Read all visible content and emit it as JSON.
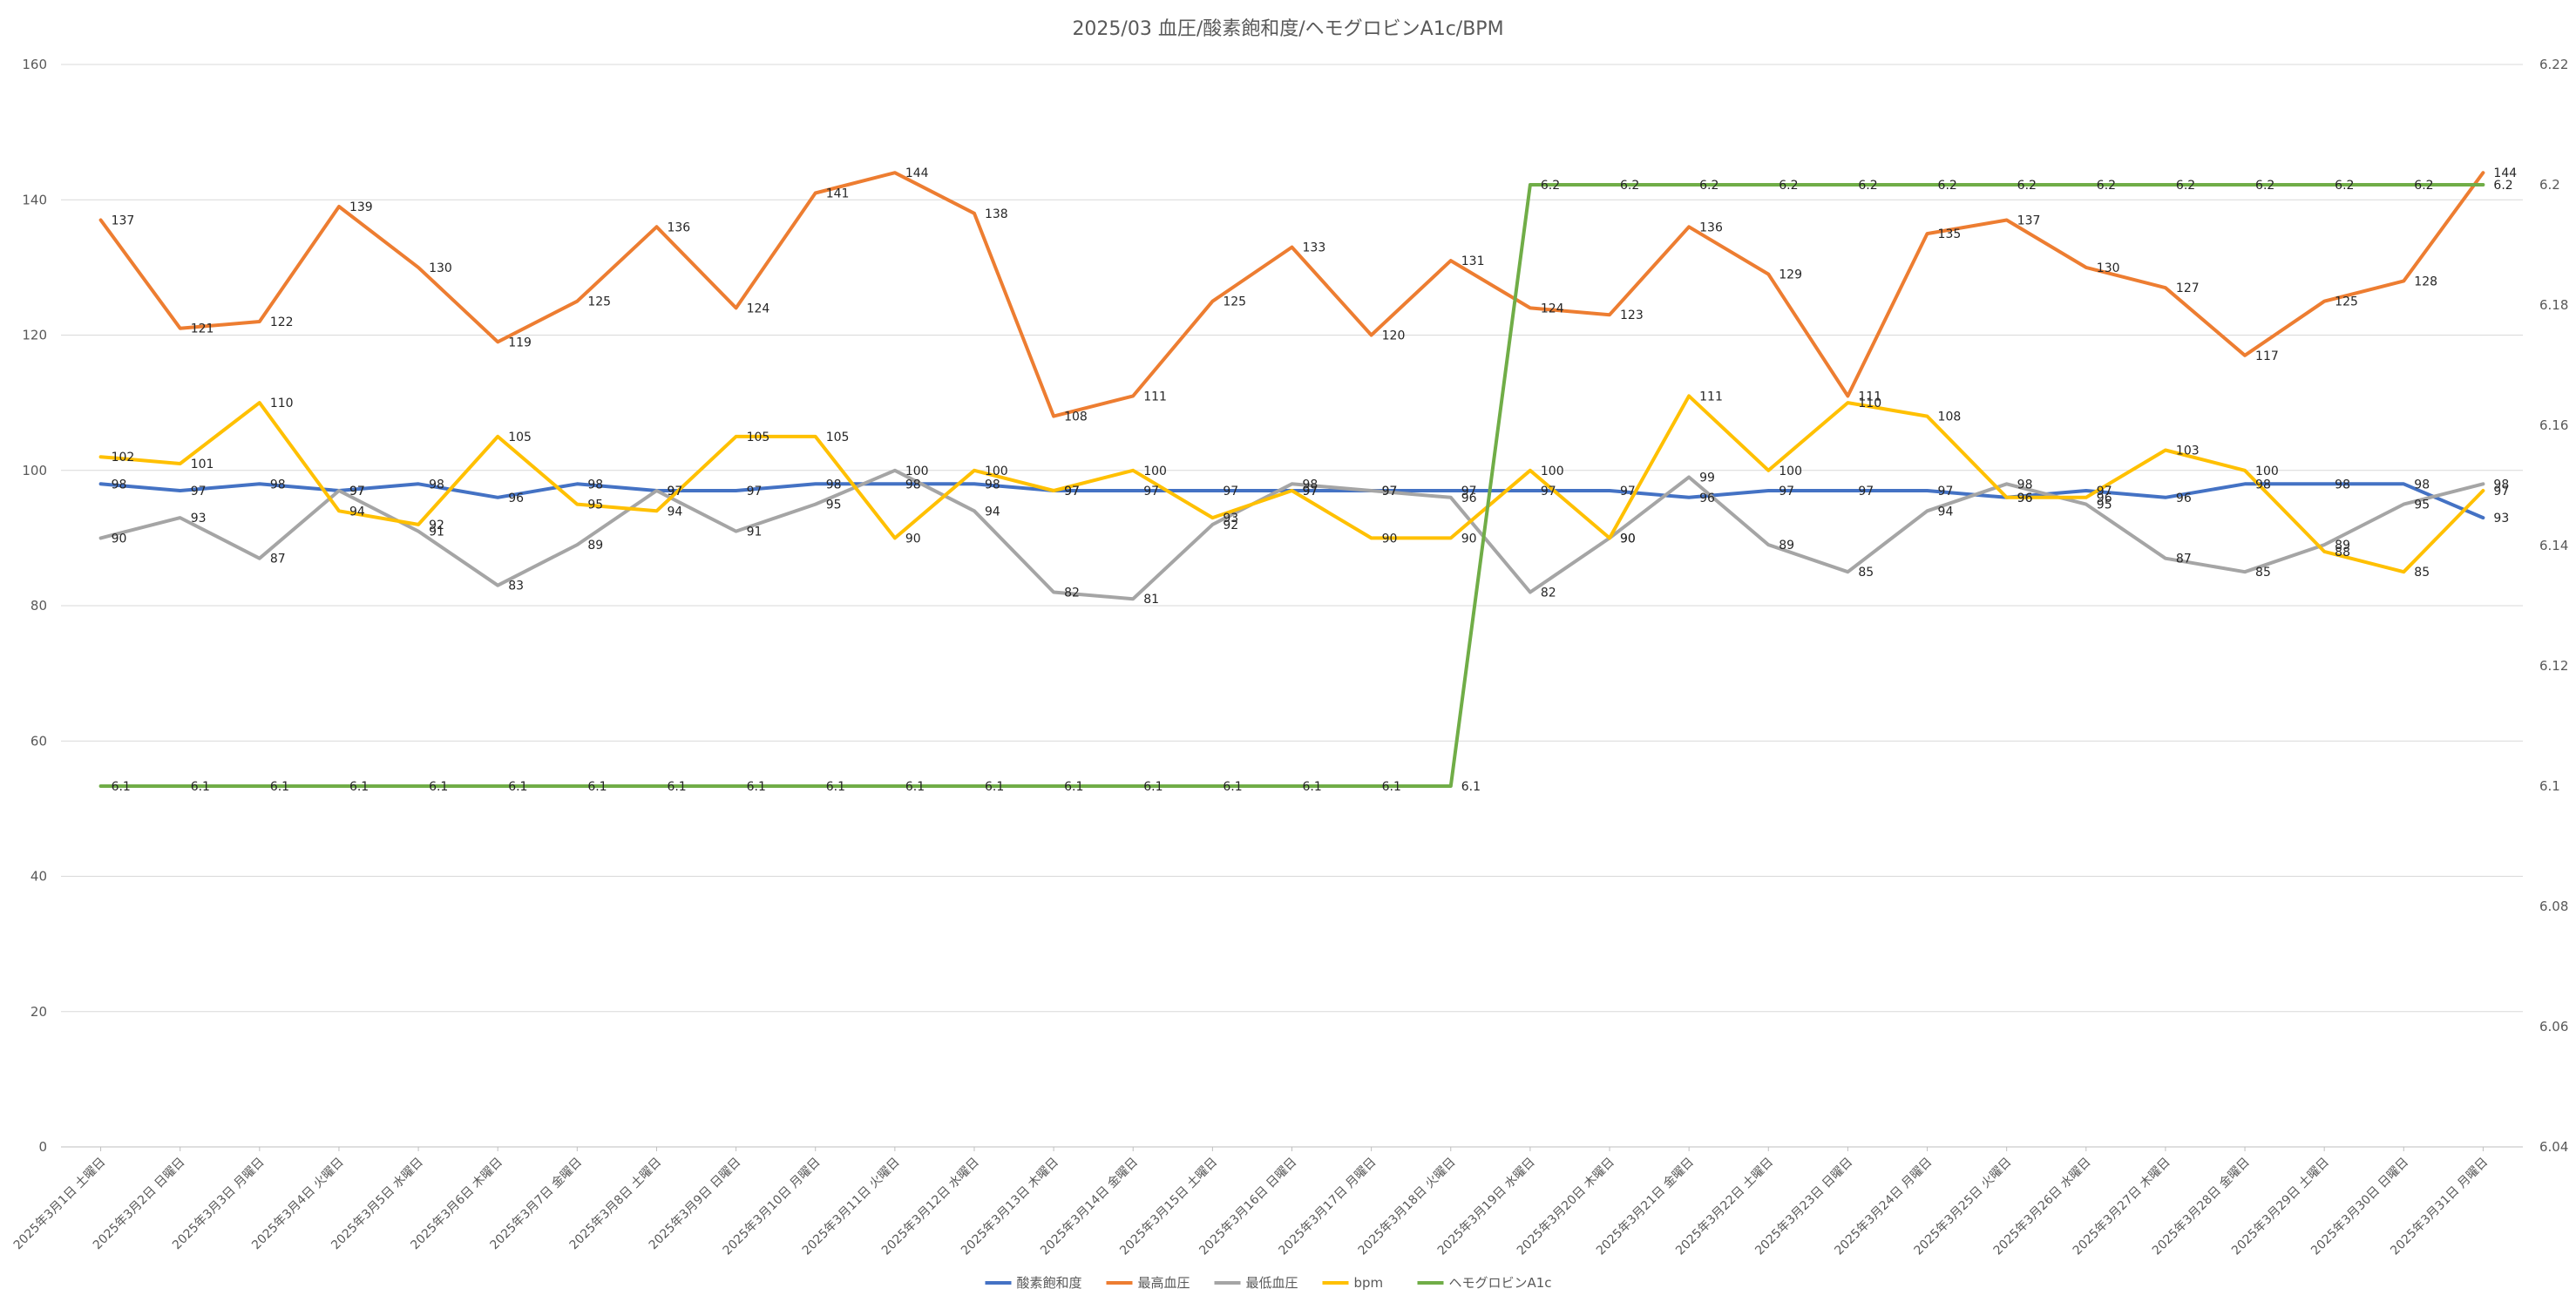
{
  "chart_data": {
    "type": "line",
    "title": "2025/03 血圧/酸素飽和度/ヘモグロビンA1c/BPM",
    "categories": [
      "2025年3月1日 土曜日",
      "2025年3月2日 日曜日",
      "2025年3月3日 月曜日",
      "2025年3月4日 火曜日",
      "2025年3月5日 水曜日",
      "2025年3月6日 木曜日",
      "2025年3月7日 金曜日",
      "2025年3月8日 土曜日",
      "2025年3月9日 日曜日",
      "2025年3月10日 月曜日",
      "2025年3月11日 火曜日",
      "2025年3月12日 水曜日",
      "2025年3月13日 木曜日",
      "2025年3月14日 金曜日",
      "2025年3月15日 土曜日",
      "2025年3月16日 日曜日",
      "2025年3月17日 月曜日",
      "2025年3月18日 火曜日",
      "2025年3月19日 水曜日",
      "2025年3月20日 木曜日",
      "2025年3月21日 金曜日",
      "2025年3月22日 土曜日",
      "2025年3月23日 日曜日",
      "2025年3月24日 月曜日",
      "2025年3月25日 火曜日",
      "2025年3月26日 水曜日",
      "2025年3月27日 木曜日",
      "2025年3月28日 金曜日",
      "2025年3月29日 土曜日",
      "2025年3月30日 日曜日",
      "2025年3月31日 月曜日"
    ],
    "y_left": {
      "min": 0,
      "max": 160,
      "ticks": [
        "0",
        "20",
        "40",
        "60",
        "80",
        "100",
        "120",
        "140",
        "160"
      ]
    },
    "y_right": {
      "min": 6.04,
      "max": 6.22,
      "ticks": [
        "6.04",
        "6.06",
        "6.08",
        "6.1",
        "6.12",
        "6.14",
        "6.16",
        "6.18",
        "6.2",
        "6.22"
      ]
    },
    "grid": true,
    "legend_position": "bottom",
    "series": [
      {
        "name": "酸素飽和度",
        "color": "#4472C4",
        "axis": "left",
        "values": [
          98,
          97,
          98,
          97,
          98,
          96,
          98,
          97,
          97,
          98,
          98,
          98,
          97,
          97,
          97,
          97,
          97,
          97,
          97,
          97,
          96,
          97,
          97,
          97,
          96,
          97,
          96,
          98,
          98,
          98,
          93
        ]
      },
      {
        "name": "最高血圧",
        "color": "#ED7D31",
        "axis": "left",
        "values": [
          137,
          121,
          122,
          139,
          130,
          119,
          125,
          136,
          124,
          141,
          144,
          138,
          108,
          111,
          125,
          133,
          120,
          131,
          124,
          123,
          136,
          129,
          111,
          135,
          137,
          130,
          127,
          117,
          125,
          128,
          144
        ]
      },
      {
        "name": "最低血圧",
        "color": "#A5A5A5",
        "axis": "left",
        "values": [
          90,
          93,
          87,
          97,
          91,
          83,
          89,
          97,
          91,
          95,
          100,
          94,
          82,
          81,
          92,
          98,
          97,
          96,
          82,
          90,
          99,
          89,
          85,
          94,
          98,
          95,
          87,
          85,
          89,
          95,
          98
        ]
      },
      {
        "name": "bpm",
        "color": "#FFC000",
        "axis": "left",
        "values": [
          102,
          101,
          110,
          94,
          92,
          105,
          95,
          94,
          105,
          105,
          90,
          100,
          97,
          100,
          93,
          97,
          90,
          90,
          100,
          90,
          111,
          100,
          110,
          108,
          96,
          96,
          103,
          100,
          88,
          85,
          97
        ]
      },
      {
        "name": "ヘモグロビンA1c",
        "color": "#70AD47",
        "axis": "right",
        "values": [
          6.1,
          6.1,
          6.1,
          6.1,
          6.1,
          6.1,
          6.1,
          6.1,
          6.1,
          6.1,
          6.1,
          6.1,
          6.1,
          6.1,
          6.1,
          6.1,
          6.1,
          6.1,
          6.2,
          6.2,
          6.2,
          6.2,
          6.2,
          6.2,
          6.2,
          6.2,
          6.2,
          6.2,
          6.2,
          6.2,
          6.2
        ]
      }
    ]
  }
}
